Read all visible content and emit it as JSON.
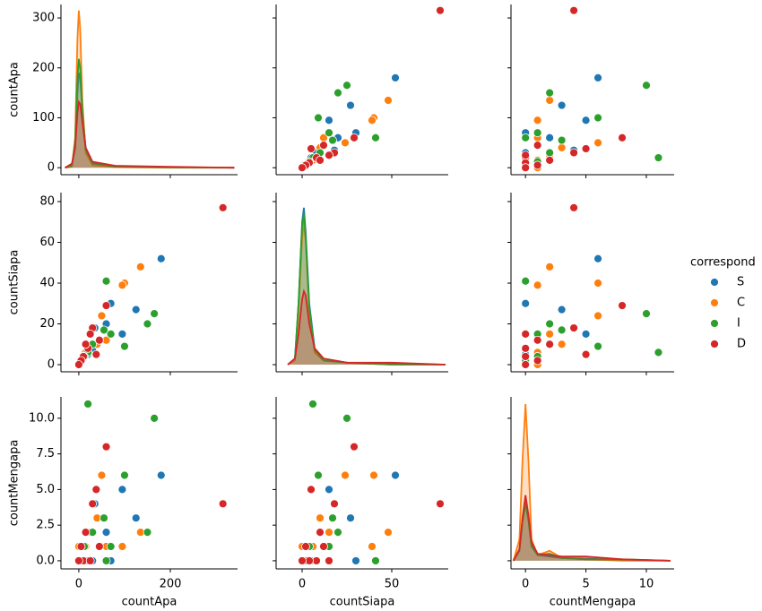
{
  "chart_data": {
    "type": "pairplot",
    "variables": [
      {
        "label": "countApa",
        "xlim": [
          -39,
          347
        ],
        "xticks": [
          0,
          200
        ],
        "ylim": [
          -14,
          327
        ],
        "yticks": [
          0,
          100,
          200,
          300
        ]
      },
      {
        "label": "countSiapa",
        "xlim": [
          -14.5,
          81.5
        ],
        "xticks": [
          0,
          50
        ],
        "ylim": [
          -3.5,
          84.4
        ],
        "yticks": [
          0,
          20,
          40,
          60,
          80
        ]
      },
      {
        "label": "countMengapa",
        "xlim": [
          -1.2,
          12.3
        ],
        "xticks": [
          0,
          5,
          10
        ],
        "ylim": [
          -0.57,
          11.5
        ],
        "yticks": [
          {
            "value": 0,
            "label": "0.0"
          },
          {
            "value": 2.5,
            "label": "2.5"
          },
          {
            "value": 5,
            "label": "5.0"
          },
          {
            "value": 7.5,
            "label": "7.5"
          },
          {
            "value": 10,
            "label": "10.0"
          }
        ]
      }
    ],
    "legend_title": "correspond",
    "series": [
      {
        "name": "S",
        "color": "#1f77b4",
        "values": [
          [
            180,
            125,
            95,
            60,
            45,
            30,
            20,
            10,
            5,
            0,
            35,
            70
          ],
          [
            52,
            27,
            15,
            20,
            12,
            8,
            5,
            3,
            1,
            0,
            18,
            30
          ],
          [
            6,
            3,
            5,
            2,
            1,
            0,
            0,
            1,
            0,
            0,
            4,
            0
          ]
        ],
        "kde": [
          {
            "x": [
              -30,
              -15,
              -8,
              -3,
              0,
              3,
              8,
              15,
              30,
              80,
              200,
              340
            ],
            "y": [
              0,
              5,
              40,
              150,
              190,
              180,
              110,
              40,
              10,
              3,
              1,
              0
            ]
          },
          {
            "x": [
              -8,
              -4,
              -2,
              0,
              1,
              2,
              4,
              7,
              12,
              25,
              50,
              80
            ],
            "y": [
              0,
              3,
              30,
              70,
              77,
              65,
              30,
              8,
              3,
              1,
              0.5,
              0
            ]
          },
          {
            "x": [
              -1,
              -0.5,
              -0.25,
              0,
              0.25,
              0.5,
              1,
              2,
              3,
              5,
              8,
              12
            ],
            "y": [
              0,
              0.8,
              2.8,
              4.2,
              3,
              1.2,
              0.4,
              0.3,
              0.2,
              0.15,
              0.05,
              0
            ]
          }
        ]
      },
      {
        "name": "C",
        "color": "#ff7f0e",
        "values": [
          [
            135,
            100,
            95,
            50,
            40,
            25,
            15,
            8,
            3,
            0,
            60
          ],
          [
            48,
            40,
            39,
            24,
            10,
            15,
            6,
            3,
            1,
            0,
            12
          ],
          [
            2,
            6,
            1,
            6,
            3,
            2,
            1,
            0,
            0,
            1,
            1
          ]
        ],
        "kde": [
          {
            "x": [
              -30,
              -15,
              -8,
              -3,
              0,
              3,
              8,
              15,
              30,
              80,
              200,
              340
            ],
            "y": [
              0,
              2,
              60,
              260,
              315,
              280,
              130,
              30,
              5,
              1,
              0,
              0
            ]
          },
          {
            "x": [
              -8,
              -4,
              -2,
              0,
              1,
              2,
              4,
              7,
              12,
              25,
              50,
              80
            ],
            "y": [
              0,
              2,
              25,
              62,
              70,
              60,
              25,
              6,
              2,
              1,
              0,
              0
            ]
          },
          {
            "x": [
              -1,
              -0.5,
              -0.25,
              0,
              0.25,
              0.5,
              1,
              2,
              3,
              5,
              8,
              12
            ],
            "y": [
              0,
              1.5,
              7,
              11,
              7,
              1.5,
              0.4,
              0.7,
              0.2,
              0.1,
              0,
              0
            ]
          }
        ]
      },
      {
        "name": "I",
        "color": "#2ca02c",
        "values": [
          [
            165,
            150,
            100,
            60,
            20,
            55,
            30,
            12,
            5,
            0,
            70
          ],
          [
            25,
            20,
            9,
            41,
            6,
            17,
            10,
            4,
            2,
            0,
            15
          ],
          [
            10,
            2,
            6,
            0,
            11,
            3,
            2,
            1,
            0,
            0,
            1
          ]
        ],
        "kde": [
          {
            "x": [
              -30,
              -15,
              -8,
              -3,
              0,
              3,
              8,
              15,
              30,
              80,
              200,
              340
            ],
            "y": [
              0,
              4,
              50,
              180,
              218,
              200,
              110,
              35,
              8,
              2,
              0.5,
              0
            ]
          },
          {
            "x": [
              -8,
              -4,
              -2,
              0,
              1,
              2,
              4,
              7,
              12,
              25,
              50,
              80
            ],
            "y": [
              0,
              3,
              30,
              68,
              74,
              62,
              28,
              7,
              2,
              1,
              0,
              0
            ]
          },
          {
            "x": [
              -1,
              -0.5,
              -0.25,
              0,
              0.25,
              0.5,
              1,
              2,
              3,
              5,
              8,
              12
            ],
            "y": [
              0,
              0.7,
              2.7,
              4,
              2.8,
              1,
              0.4,
              0.5,
              0.2,
              0.1,
              0.1,
              0
            ]
          }
        ]
      },
      {
        "name": "D",
        "color": "#d62728",
        "values": [
          [
            315,
            60,
            38,
            30,
            45,
            20,
            10,
            5,
            0,
            25,
            15
          ],
          [
            77,
            29,
            5,
            18,
            12,
            8,
            4,
            2,
            0,
            15,
            10
          ],
          [
            4,
            8,
            5,
            4,
            1,
            0,
            0,
            1,
            0,
            0,
            2
          ]
        ],
        "kde": [
          {
            "x": [
              -30,
              -15,
              -8,
              -3,
              0,
              3,
              8,
              15,
              30,
              80,
              200,
              340
            ],
            "y": [
              0,
              8,
              40,
              110,
              132,
              128,
              90,
              40,
              12,
              4,
              2,
              0
            ]
          },
          {
            "x": [
              -8,
              -4,
              -2,
              0,
              1,
              2,
              4,
              7,
              12,
              25,
              50,
              80
            ],
            "y": [
              0,
              3,
              15,
              32,
              36,
              34,
              20,
              8,
              3,
              1,
              1,
              0
            ]
          },
          {
            "x": [
              -1,
              -0.5,
              -0.25,
              0,
              0.25,
              0.5,
              1,
              2,
              3,
              5,
              8,
              12
            ],
            "y": [
              0,
              0.8,
              3,
              4.6,
              3.2,
              1.3,
              0.5,
              0.4,
              0.3,
              0.3,
              0.1,
              0
            ]
          }
        ]
      }
    ]
  }
}
